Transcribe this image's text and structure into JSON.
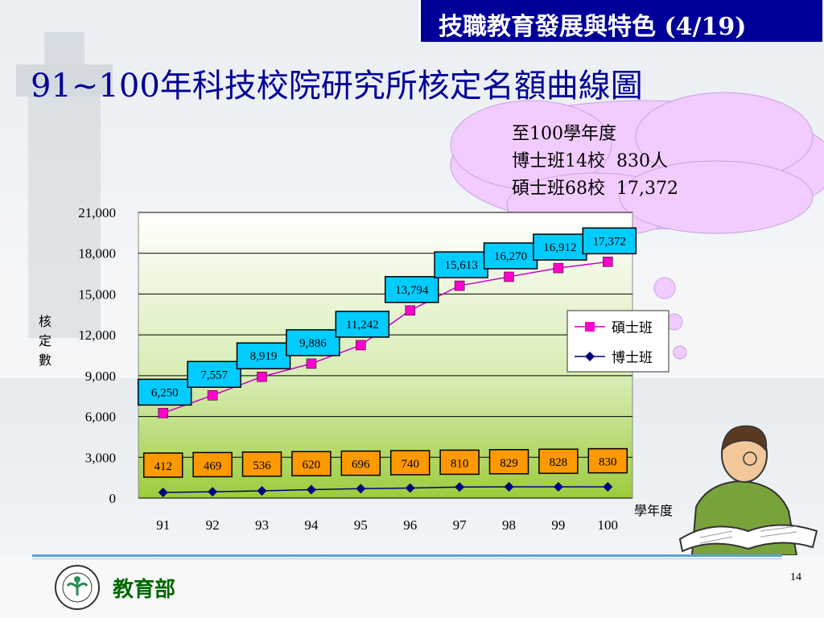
{
  "header": {
    "title": "技職教育發展與特色 (4/19)"
  },
  "slide": {
    "title": "91~100年科技校院研究所核定名額曲線圖",
    "note_lines": [
      "至100學年度",
      "博士班14校  830人",
      "碩士班68校  17,372"
    ],
    "footer": "教育部",
    "page_number": "14"
  },
  "colors": {
    "masters": "#cc00cc",
    "masters_marker": "#ff00cc",
    "doctoral": "#000080",
    "label_blue": "#00ccff",
    "label_orange": "#ff9900",
    "cloud": "#f2ccff",
    "title": "#000099"
  },
  "chart_data": {
    "type": "line",
    "x": [
      "91",
      "92",
      "93",
      "94",
      "95",
      "96",
      "97",
      "98",
      "99",
      "100"
    ],
    "xlabel": "學年度",
    "ylabel": "核定數",
    "ylim": [
      0,
      21000
    ],
    "yticks": [
      "0",
      "3,000",
      "6,000",
      "9,000",
      "12,000",
      "15,000",
      "18,000",
      "21,000"
    ],
    "grid": true,
    "legend": "right",
    "series": [
      {
        "name": "碩士班",
        "values": [
          6250,
          7557,
          8919,
          9886,
          11242,
          13794,
          15613,
          16270,
          16912,
          17372
        ],
        "labels": [
          "6,250",
          "7,557",
          "8,919",
          "9,886",
          "11,242",
          "13,794",
          "15,613",
          "16,270",
          "16,912",
          "17,372"
        ]
      },
      {
        "name": "博士班",
        "values": [
          412,
          469,
          536,
          620,
          696,
          740,
          810,
          829,
          828,
          830
        ],
        "labels": [
          "412",
          "469",
          "536",
          "620",
          "696",
          "740",
          "810",
          "829",
          "828",
          "830"
        ]
      }
    ]
  }
}
